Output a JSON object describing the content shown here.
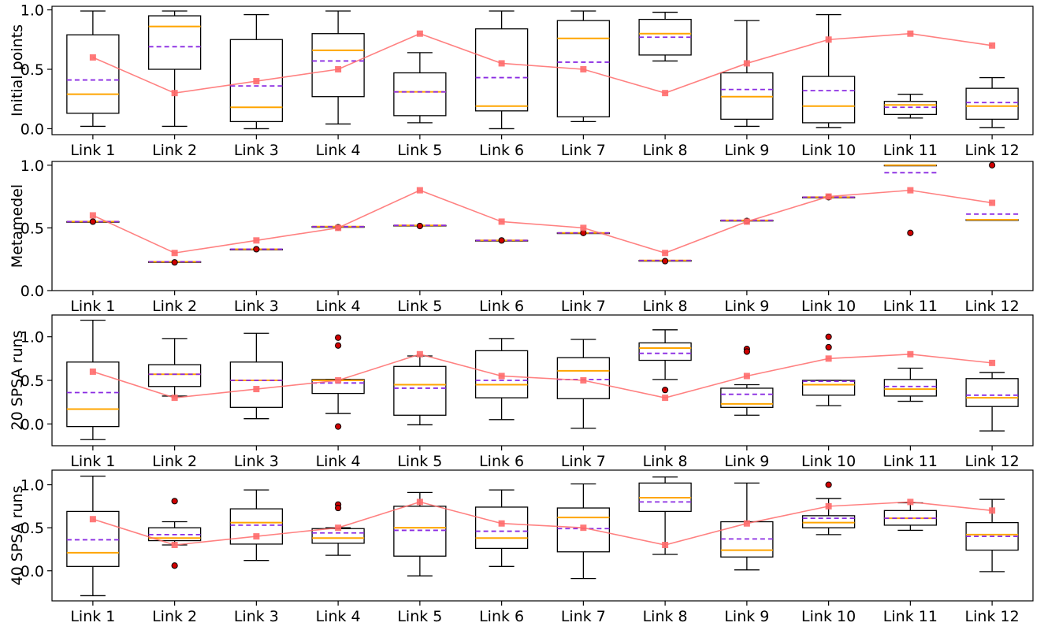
{
  "colors": {
    "box": "#000000",
    "median": "#ffa500",
    "mean": "#8a2be2",
    "truth": "#ff6b6b",
    "outlier_fill": "#d00000"
  },
  "chart_data": [
    {
      "type": "box",
      "ylabel": "Initial points",
      "ylim": [
        -0.05,
        1.03
      ],
      "yticks": [
        "0.0",
        "0.5",
        "1.0"
      ],
      "ytick_values": [
        0.0,
        0.5,
        1.0
      ],
      "categories": [
        "Link 1",
        "Link 2",
        "Link 3",
        "Link 4",
        "Link 5",
        "Link 6",
        "Link 7",
        "Link 8",
        "Link 9",
        "Link 10",
        "Link 11",
        "Link 12"
      ],
      "boxes": [
        {
          "whislo": 0.02,
          "q1": 0.13,
          "med": 0.29,
          "mean": 0.41,
          "q3": 0.79,
          "whishi": 0.99,
          "fliers": []
        },
        {
          "whislo": 0.02,
          "q1": 0.5,
          "med": 0.86,
          "mean": 0.69,
          "q3": 0.95,
          "whishi": 0.99,
          "fliers": []
        },
        {
          "whislo": 0.0,
          "q1": 0.06,
          "med": 0.18,
          "mean": 0.36,
          "q3": 0.75,
          "whishi": 0.96,
          "fliers": []
        },
        {
          "whislo": 0.04,
          "q1": 0.27,
          "med": 0.66,
          "mean": 0.57,
          "q3": 0.8,
          "whishi": 0.99,
          "fliers": []
        },
        {
          "whislo": 0.05,
          "q1": 0.11,
          "med": 0.31,
          "mean": 0.31,
          "q3": 0.47,
          "whishi": 0.64,
          "fliers": []
        },
        {
          "whislo": 0.0,
          "q1": 0.15,
          "med": 0.19,
          "mean": 0.43,
          "q3": 0.84,
          "whishi": 0.99,
          "fliers": []
        },
        {
          "whislo": 0.06,
          "q1": 0.1,
          "med": 0.76,
          "mean": 0.56,
          "q3": 0.91,
          "whishi": 0.99,
          "fliers": []
        },
        {
          "whislo": 0.57,
          "q1": 0.62,
          "med": 0.8,
          "mean": 0.77,
          "q3": 0.92,
          "whishi": 0.98,
          "fliers": []
        },
        {
          "whislo": 0.02,
          "q1": 0.08,
          "med": 0.27,
          "mean": 0.33,
          "q3": 0.47,
          "whishi": 0.91,
          "fliers": []
        },
        {
          "whislo": 0.01,
          "q1": 0.05,
          "med": 0.19,
          "mean": 0.32,
          "q3": 0.44,
          "whishi": 0.96,
          "fliers": []
        },
        {
          "whislo": 0.09,
          "q1": 0.12,
          "med": 0.2,
          "mean": 0.18,
          "q3": 0.23,
          "whishi": 0.29,
          "fliers": []
        },
        {
          "whislo": 0.01,
          "q1": 0.08,
          "med": 0.19,
          "mean": 0.22,
          "q3": 0.34,
          "whishi": 0.43,
          "fliers": []
        }
      ],
      "truth": [
        0.6,
        0.3,
        0.4,
        0.5,
        0.8,
        0.55,
        0.5,
        0.3,
        0.55,
        0.75,
        0.8,
        0.7
      ]
    },
    {
      "type": "box",
      "ylabel": "Metamedel",
      "ylim": [
        0.0,
        1.03
      ],
      "yticks": [
        "0.0",
        "0.5",
        "1.0"
      ],
      "ytick_values": [
        0.0,
        0.5,
        1.0
      ],
      "categories": [
        "Link 1",
        "Link 2",
        "Link 3",
        "Link 4",
        "Link 5",
        "Link 6",
        "Link 7",
        "Link 8",
        "Link 9",
        "Link 10",
        "Link 11",
        "Link 12"
      ],
      "boxes": [
        {
          "whislo": 0.55,
          "q1": 0.55,
          "med": 0.55,
          "mean": 0.55,
          "q3": 0.55,
          "whishi": 0.55,
          "fliers": [
            0.55
          ]
        },
        {
          "whislo": 0.23,
          "q1": 0.23,
          "med": 0.23,
          "mean": 0.23,
          "q3": 0.23,
          "whishi": 0.23,
          "fliers": [
            0.225
          ]
        },
        {
          "whislo": 0.33,
          "q1": 0.33,
          "med": 0.33,
          "mean": 0.33,
          "q3": 0.33,
          "whishi": 0.33,
          "fliers": [
            0.33
          ]
        },
        {
          "whislo": 0.51,
          "q1": 0.51,
          "med": 0.51,
          "mean": 0.51,
          "q3": 0.51,
          "whishi": 0.51,
          "fliers": [
            0.505
          ]
        },
        {
          "whislo": 0.52,
          "q1": 0.52,
          "med": 0.52,
          "mean": 0.52,
          "q3": 0.52,
          "whishi": 0.52,
          "fliers": [
            0.515
          ]
        },
        {
          "whislo": 0.4,
          "q1": 0.4,
          "med": 0.4,
          "mean": 0.4,
          "q3": 0.4,
          "whishi": 0.4,
          "fliers": [
            0.4
          ]
        },
        {
          "whislo": 0.46,
          "q1": 0.46,
          "med": 0.46,
          "mean": 0.46,
          "q3": 0.46,
          "whishi": 0.46,
          "fliers": [
            0.46
          ]
        },
        {
          "whislo": 0.24,
          "q1": 0.24,
          "med": 0.24,
          "mean": 0.24,
          "q3": 0.24,
          "whishi": 0.24,
          "fliers": [
            0.235
          ]
        },
        {
          "whislo": 0.56,
          "q1": 0.56,
          "med": 0.56,
          "mean": 0.56,
          "q3": 0.56,
          "whishi": 0.56,
          "fliers": [
            0.555
          ]
        },
        {
          "whislo": 0.745,
          "q1": 0.745,
          "med": 0.745,
          "mean": 0.745,
          "q3": 0.745,
          "whishi": 0.745,
          "fliers": [
            0.745
          ]
        },
        {
          "whislo": 1.0,
          "q1": 1.0,
          "med": 1.0,
          "mean": 0.94,
          "q3": 1.0,
          "whishi": 1.0,
          "fliers": [
            0.46
          ]
        },
        {
          "whislo": 0.565,
          "q1": 0.565,
          "med": 0.565,
          "mean": 0.61,
          "q3": 0.565,
          "whishi": 0.565,
          "fliers": [
            1.0
          ]
        }
      ],
      "truth": [
        0.6,
        0.3,
        0.4,
        0.5,
        0.8,
        0.55,
        0.5,
        0.3,
        0.55,
        0.75,
        0.8,
        0.7
      ]
    },
    {
      "type": "box",
      "ylabel": "20 SPSA runs",
      "ylim": [
        -0.25,
        1.25
      ],
      "yticks": [
        "0.0",
        "0.5",
        "1.0"
      ],
      "ytick_values": [
        0.0,
        0.5,
        1.0
      ],
      "categories": [
        "Link 1",
        "Link 2",
        "Link 3",
        "Link 4",
        "Link 5",
        "Link 6",
        "Link 7",
        "Link 8",
        "Link 9",
        "Link 10",
        "Link 11",
        "Link 12"
      ],
      "boxes": [
        {
          "whislo": -0.18,
          "q1": -0.03,
          "med": 0.17,
          "mean": 0.36,
          "q3": 0.71,
          "whishi": 1.19,
          "fliers": []
        },
        {
          "whislo": 0.32,
          "q1": 0.43,
          "med": 0.57,
          "mean": 0.57,
          "q3": 0.68,
          "whishi": 0.98,
          "fliers": []
        },
        {
          "whislo": 0.06,
          "q1": 0.19,
          "med": 0.5,
          "mean": 0.5,
          "q3": 0.71,
          "whishi": 1.04,
          "fliers": []
        },
        {
          "whislo": 0.12,
          "q1": 0.35,
          "med": 0.5,
          "mean": 0.47,
          "q3": 0.51,
          "whishi": 0.51,
          "fliers": [
            0.99,
            0.9,
            -0.03
          ]
        },
        {
          "whislo": -0.01,
          "q1": 0.1,
          "med": 0.45,
          "mean": 0.41,
          "q3": 0.66,
          "whishi": 0.78,
          "fliers": []
        },
        {
          "whislo": 0.05,
          "q1": 0.3,
          "med": 0.45,
          "mean": 0.5,
          "q3": 0.84,
          "whishi": 0.98,
          "fliers": []
        },
        {
          "whislo": -0.05,
          "q1": 0.29,
          "med": 0.61,
          "mean": 0.51,
          "q3": 0.76,
          "whishi": 0.97,
          "fliers": []
        },
        {
          "whislo": 0.51,
          "q1": 0.73,
          "med": 0.87,
          "mean": 0.81,
          "q3": 0.93,
          "whishi": 1.08,
          "fliers": [
            0.39
          ]
        },
        {
          "whislo": 0.1,
          "q1": 0.19,
          "med": 0.23,
          "mean": 0.34,
          "q3": 0.41,
          "whishi": 0.45,
          "fliers": [
            0.86,
            0.83
          ]
        },
        {
          "whislo": 0.21,
          "q1": 0.33,
          "med": 0.45,
          "mean": 0.49,
          "q3": 0.5,
          "whishi": 0.5,
          "fliers": [
            1.0,
            0.88
          ]
        },
        {
          "whislo": 0.26,
          "q1": 0.32,
          "med": 0.4,
          "mean": 0.43,
          "q3": 0.51,
          "whishi": 0.64,
          "fliers": []
        },
        {
          "whislo": -0.08,
          "q1": 0.2,
          "med": 0.3,
          "mean": 0.33,
          "q3": 0.52,
          "whishi": 0.59,
          "fliers": []
        }
      ],
      "truth": [
        0.6,
        0.3,
        0.4,
        0.5,
        0.8,
        0.55,
        0.5,
        0.3,
        0.55,
        0.75,
        0.8,
        0.7
      ]
    },
    {
      "type": "box",
      "ylabel": "40 SPSA runs",
      "ylim": [
        -0.35,
        1.17
      ],
      "yticks": [
        "0.0",
        "0.5",
        "1.0"
      ],
      "ytick_values": [
        0.0,
        0.5,
        1.0
      ],
      "categories": [
        "Link 1",
        "Link 2",
        "Link 3",
        "Link 4",
        "Link 5",
        "Link 6",
        "Link 7",
        "Link 8",
        "Link 9",
        "Link 10",
        "Link 11",
        "Link 12"
      ],
      "boxes": [
        {
          "whislo": -0.29,
          "q1": 0.05,
          "med": 0.21,
          "mean": 0.36,
          "q3": 0.69,
          "whishi": 1.1,
          "fliers": []
        },
        {
          "whislo": 0.3,
          "q1": 0.35,
          "med": 0.38,
          "mean": 0.42,
          "q3": 0.5,
          "whishi": 0.57,
          "fliers": [
            0.81,
            0.06
          ]
        },
        {
          "whislo": 0.12,
          "q1": 0.31,
          "med": 0.56,
          "mean": 0.53,
          "q3": 0.72,
          "whishi": 0.94,
          "fliers": []
        },
        {
          "whislo": 0.18,
          "q1": 0.32,
          "med": 0.38,
          "mean": 0.44,
          "q3": 0.49,
          "whishi": 0.5,
          "fliers": [
            0.77,
            0.73
          ]
        },
        {
          "whislo": -0.06,
          "q1": 0.17,
          "med": 0.5,
          "mean": 0.47,
          "q3": 0.75,
          "whishi": 0.91,
          "fliers": []
        },
        {
          "whislo": 0.05,
          "q1": 0.26,
          "med": 0.38,
          "mean": 0.46,
          "q3": 0.74,
          "whishi": 0.94,
          "fliers": []
        },
        {
          "whislo": -0.09,
          "q1": 0.22,
          "med": 0.62,
          "mean": 0.49,
          "q3": 0.73,
          "whishi": 1.01,
          "fliers": []
        },
        {
          "whislo": 0.19,
          "q1": 0.69,
          "med": 0.85,
          "mean": 0.8,
          "q3": 1.02,
          "whishi": 1.09,
          "fliers": []
        },
        {
          "whislo": 0.01,
          "q1": 0.16,
          "med": 0.24,
          "mean": 0.37,
          "q3": 0.57,
          "whishi": 1.02,
          "fliers": []
        },
        {
          "whislo": 0.42,
          "q1": 0.5,
          "med": 0.56,
          "mean": 0.61,
          "q3": 0.64,
          "whishi": 0.84,
          "fliers": [
            1.0
          ]
        },
        {
          "whislo": 0.47,
          "q1": 0.53,
          "med": 0.61,
          "mean": 0.61,
          "q3": 0.7,
          "whishi": 0.79,
          "fliers": []
        },
        {
          "whislo": -0.01,
          "q1": 0.24,
          "med": 0.42,
          "mean": 0.4,
          "q3": 0.56,
          "whishi": 0.83,
          "fliers": []
        }
      ],
      "truth": [
        0.6,
        0.3,
        0.4,
        0.5,
        0.8,
        0.55,
        0.5,
        0.3,
        0.55,
        0.75,
        0.8,
        0.7
      ]
    }
  ]
}
